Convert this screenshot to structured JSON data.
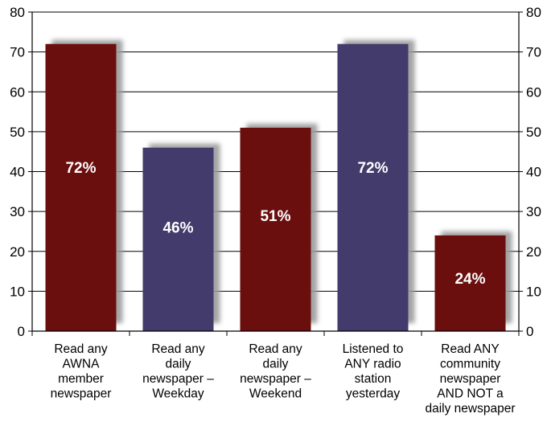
{
  "chart_data": {
    "type": "bar",
    "title": "",
    "xlabel": "",
    "ylabel": "",
    "ylim": [
      0,
      80
    ],
    "y_ticks": [
      "0",
      "10",
      "20",
      "30",
      "40",
      "50",
      "60",
      "70",
      "80"
    ],
    "grid": true,
    "right_axis": true,
    "categories": [
      [
        "Read any",
        "AWNA",
        "member",
        "newspaper"
      ],
      [
        "Read any",
        "daily",
        "newspaper –",
        "Weekday"
      ],
      [
        "Read any",
        "daily",
        "newspaper –",
        "Weekend"
      ],
      [
        "Listened to",
        "ANY radio",
        "station",
        "yesterday"
      ],
      [
        "Read ANY",
        "community",
        "newspaper",
        "AND NOT a",
        "daily newspaper"
      ]
    ],
    "values": [
      72,
      46,
      51,
      72,
      24
    ],
    "data_labels": [
      "72%",
      "46%",
      "51%",
      "72%",
      "24%"
    ],
    "bar_colors": [
      "#6b0e0e",
      "#433b6b",
      "#6b0e0e",
      "#433b6b",
      "#6b0e0e"
    ],
    "shadow_color": "#9a9a9a"
  }
}
